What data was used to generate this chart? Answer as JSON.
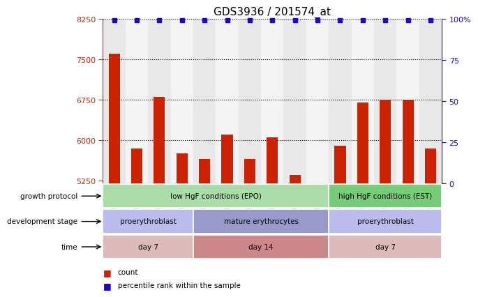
{
  "title": "GDS3936 / 201574_at",
  "samples": [
    "GSM190964",
    "GSM190965",
    "GSM190966",
    "GSM190967",
    "GSM190968",
    "GSM190969",
    "GSM190970",
    "GSM190971",
    "GSM190972",
    "GSM190973",
    "GSM426506",
    "GSM426507",
    "GSM426508",
    "GSM426509",
    "GSM426510"
  ],
  "counts": [
    7600,
    5850,
    6800,
    5750,
    5650,
    6100,
    5650,
    6050,
    5350,
    5200,
    5900,
    6700,
    6750,
    6750,
    5850
  ],
  "bar_color": "#cc2200",
  "dot_color": "#2200cc",
  "y_min": 5200,
  "y_max": 8250,
  "y_ticks_left": [
    5250,
    6000,
    6750,
    7500,
    8250
  ],
  "y_ticks_right_vals": [
    0,
    25,
    50,
    75,
    100
  ],
  "y_ticks_right_labels": [
    "0",
    "25",
    "50",
    "75",
    "100%"
  ],
  "grid_lines": [
    6000,
    6750,
    7500
  ],
  "row1_label": "growth protocol",
  "row2_label": "development stage",
  "row3_label": "time",
  "row1_segs": [
    {
      "text": "low HgF conditions (EPO)",
      "start": 0,
      "end": 9,
      "color": "#aaddaa"
    },
    {
      "text": "high HgF conditions (EST)",
      "start": 10,
      "end": 14,
      "color": "#77cc77"
    }
  ],
  "row2_segs": [
    {
      "text": "proerythroblast",
      "start": 0,
      "end": 3,
      "color": "#bbbbee"
    },
    {
      "text": "mature erythrocytes",
      "start": 4,
      "end": 9,
      "color": "#9999cc"
    },
    {
      "text": "proerythroblast",
      "start": 10,
      "end": 14,
      "color": "#bbbbee"
    }
  ],
  "row3_segs": [
    {
      "text": "day 7",
      "start": 0,
      "end": 3,
      "color": "#ddbbbb"
    },
    {
      "text": "day 14",
      "start": 4,
      "end": 9,
      "color": "#cc8888"
    },
    {
      "text": "day 7",
      "start": 10,
      "end": 14,
      "color": "#ddbbbb"
    }
  ],
  "col_bg_even": "#e8e8e8",
  "col_bg_odd": "#f4f4f4"
}
